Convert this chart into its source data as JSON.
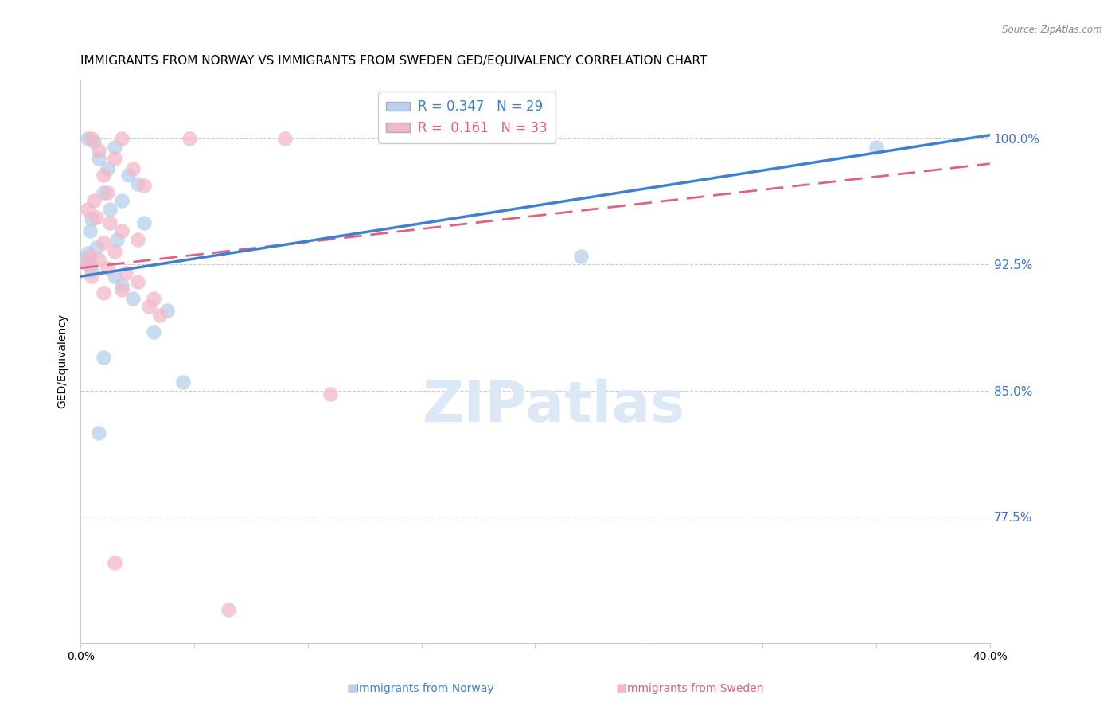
{
  "title": "IMMIGRANTS FROM NORWAY VS IMMIGRANTS FROM SWEDEN GED/EQUIVALENCY CORRELATION CHART",
  "source": "Source: ZipAtlas.com",
  "ylabel": "GED/Equivalency",
  "yticks": [
    100.0,
    92.5,
    85.0,
    77.5
  ],
  "ytick_labels": [
    "100.0%",
    "92.5%",
    "85.0%",
    "77.5%"
  ],
  "xlim": [
    0.0,
    40.0
  ],
  "ylim": [
    70.0,
    103.5
  ],
  "norway_R": 0.347,
  "norway_N": 29,
  "sweden_R": 0.161,
  "sweden_N": 33,
  "norway_color": "#b8d0ea",
  "sweden_color": "#f2b8c8",
  "norway_line_color": "#4080d0",
  "sweden_line_color": "#e06080",
  "norway_scatter": [
    [
      0.3,
      100.0
    ],
    [
      0.6,
      99.8
    ],
    [
      1.5,
      99.5
    ],
    [
      0.8,
      98.8
    ],
    [
      1.2,
      98.2
    ],
    [
      2.1,
      97.8
    ],
    [
      2.5,
      97.3
    ],
    [
      1.0,
      96.8
    ],
    [
      1.8,
      96.3
    ],
    [
      1.3,
      95.8
    ],
    [
      0.5,
      95.2
    ],
    [
      2.8,
      95.0
    ],
    [
      0.4,
      94.5
    ],
    [
      1.6,
      94.0
    ],
    [
      0.7,
      93.5
    ],
    [
      0.3,
      93.2
    ],
    [
      0.2,
      92.8
    ],
    [
      0.4,
      92.5
    ],
    [
      0.5,
      92.2
    ],
    [
      1.5,
      91.8
    ],
    [
      1.8,
      91.3
    ],
    [
      2.3,
      90.5
    ],
    [
      3.8,
      89.8
    ],
    [
      3.2,
      88.5
    ],
    [
      1.0,
      87.0
    ],
    [
      4.5,
      85.5
    ],
    [
      0.8,
      82.5
    ],
    [
      35.0,
      99.5
    ],
    [
      22.0,
      93.0
    ]
  ],
  "sweden_scatter": [
    [
      0.5,
      100.0
    ],
    [
      1.8,
      100.0
    ],
    [
      4.8,
      100.0
    ],
    [
      9.0,
      100.0
    ],
    [
      0.8,
      99.3
    ],
    [
      1.5,
      98.8
    ],
    [
      2.3,
      98.2
    ],
    [
      1.0,
      97.8
    ],
    [
      2.8,
      97.2
    ],
    [
      1.2,
      96.8
    ],
    [
      0.6,
      96.3
    ],
    [
      0.3,
      95.8
    ],
    [
      0.7,
      95.3
    ],
    [
      1.3,
      95.0
    ],
    [
      1.8,
      94.5
    ],
    [
      2.5,
      94.0
    ],
    [
      1.0,
      93.8
    ],
    [
      1.5,
      93.3
    ],
    [
      0.4,
      93.0
    ],
    [
      0.8,
      92.8
    ],
    [
      1.2,
      92.3
    ],
    [
      2.0,
      92.0
    ],
    [
      2.5,
      91.5
    ],
    [
      1.8,
      91.0
    ],
    [
      3.2,
      90.5
    ],
    [
      3.0,
      90.0
    ],
    [
      3.5,
      89.5
    ],
    [
      11.0,
      84.8
    ],
    [
      1.5,
      74.8
    ],
    [
      6.5,
      72.0
    ],
    [
      0.3,
      92.5
    ],
    [
      0.5,
      91.8
    ],
    [
      1.0,
      90.8
    ]
  ],
  "norway_line_x": [
    0.0,
    40.0
  ],
  "norway_line_y": [
    91.8,
    100.2
  ],
  "sweden_line_x": [
    0.0,
    40.0
  ],
  "sweden_line_y": [
    92.3,
    98.5
  ],
  "background_color": "#ffffff",
  "grid_color": "#cccccc",
  "title_fontsize": 11,
  "axis_label_fontsize": 10,
  "tick_fontsize": 10,
  "legend_fontsize": 12,
  "ytick_color": "#4070d0",
  "watermark_text": "ZIPatlas",
  "watermark_color": "#dce8f5",
  "watermark_fontsize": 52,
  "legend_norway_label": "R = 0.347   N = 29",
  "legend_sweden_label": "R =  0.161   N = 33",
  "bottom_norway_label": "Immigrants from Norway",
  "bottom_sweden_label": "Immigrants from Sweden"
}
